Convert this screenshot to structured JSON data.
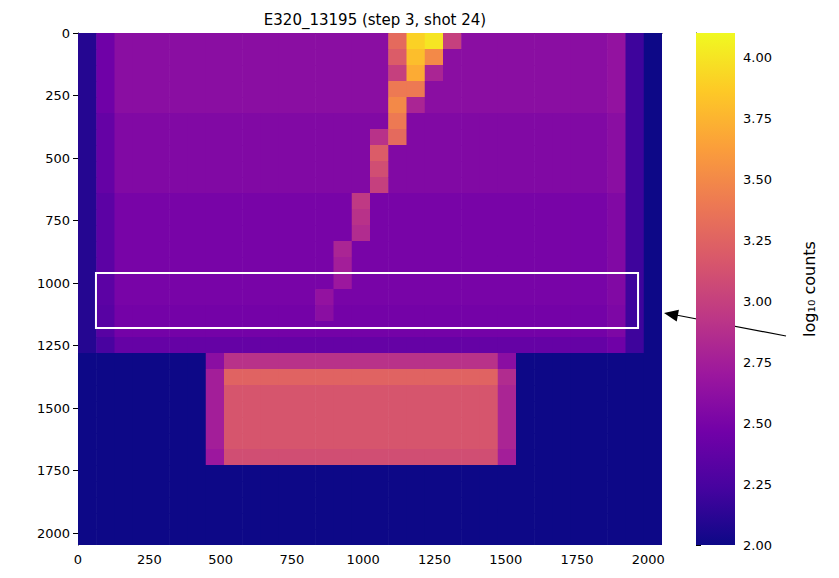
{
  "chart_data": {
    "type": "heatmap",
    "title": "E320_13195 (step 3, shot 24)",
    "xlim": [
      0,
      2048
    ],
    "ylim": [
      2048,
      0
    ],
    "xticks": [
      0,
      250,
      500,
      750,
      1000,
      1250,
      1500,
      1750,
      2000
    ],
    "yticks": [
      0,
      250,
      500,
      750,
      1000,
      1250,
      1500,
      1750,
      2000
    ],
    "x_bins": [
      0,
      64,
      128,
      192,
      256,
      320,
      384,
      448,
      512,
      576,
      640,
      704,
      768,
      832,
      896,
      960,
      1024,
      1088,
      1152,
      1216,
      1280,
      1344,
      1408,
      1472,
      1536,
      1600,
      1664,
      1728,
      1792,
      1856,
      1920,
      1984,
      2048
    ],
    "y_bins": [
      0,
      64,
      128,
      192,
      256,
      320,
      384,
      448,
      512,
      576,
      640,
      704,
      768,
      832,
      896,
      960,
      1024,
      1088,
      1152,
      1216,
      1280,
      1344,
      1408,
      1472,
      1536,
      1600,
      1664,
      1728,
      1792,
      1856,
      1920,
      1984,
      2048
    ],
    "cells": [
      [
        2.1,
        2.45,
        2.6,
        2.6,
        2.6,
        2.6,
        2.6,
        2.6,
        2.6,
        2.6,
        2.6,
        2.6,
        2.6,
        2.6,
        2.6,
        2.6,
        2.6,
        3.3,
        3.9,
        4.0,
        3.0,
        2.6,
        2.6,
        2.6,
        2.6,
        2.6,
        2.6,
        2.6,
        2.6,
        2.65,
        2.2,
        2.0
      ],
      [
        2.1,
        2.45,
        2.6,
        2.6,
        2.6,
        2.6,
        2.6,
        2.6,
        2.6,
        2.6,
        2.6,
        2.6,
        2.6,
        2.6,
        2.6,
        2.6,
        2.6,
        3.2,
        3.8,
        3.5,
        2.6,
        2.6,
        2.6,
        2.6,
        2.6,
        2.6,
        2.6,
        2.6,
        2.6,
        2.65,
        2.2,
        2.0
      ],
      [
        2.1,
        2.45,
        2.6,
        2.6,
        2.6,
        2.6,
        2.6,
        2.6,
        2.6,
        2.6,
        2.6,
        2.6,
        2.6,
        2.6,
        2.6,
        2.6,
        2.6,
        3.0,
        3.7,
        2.8,
        2.6,
        2.6,
        2.6,
        2.6,
        2.6,
        2.6,
        2.6,
        2.6,
        2.6,
        2.65,
        2.2,
        2.0
      ],
      [
        2.1,
        2.45,
        2.6,
        2.6,
        2.6,
        2.6,
        2.6,
        2.6,
        2.6,
        2.6,
        2.6,
        2.6,
        2.6,
        2.6,
        2.6,
        2.6,
        2.6,
        3.4,
        3.4,
        2.6,
        2.6,
        2.6,
        2.6,
        2.6,
        2.6,
        2.6,
        2.6,
        2.6,
        2.6,
        2.65,
        2.2,
        2.0
      ],
      [
        2.1,
        2.45,
        2.6,
        2.6,
        2.6,
        2.6,
        2.6,
        2.6,
        2.6,
        2.6,
        2.6,
        2.6,
        2.6,
        2.6,
        2.6,
        2.6,
        2.6,
        3.5,
        2.8,
        2.6,
        2.6,
        2.6,
        2.6,
        2.6,
        2.6,
        2.6,
        2.6,
        2.6,
        2.6,
        2.65,
        2.2,
        2.0
      ],
      [
        2.1,
        2.4,
        2.55,
        2.55,
        2.55,
        2.55,
        2.55,
        2.55,
        2.55,
        2.55,
        2.55,
        2.55,
        2.55,
        2.55,
        2.55,
        2.55,
        2.55,
        3.4,
        2.55,
        2.55,
        2.55,
        2.55,
        2.55,
        2.55,
        2.55,
        2.55,
        2.55,
        2.55,
        2.55,
        2.6,
        2.2,
        2.0
      ],
      [
        2.1,
        2.4,
        2.55,
        2.55,
        2.55,
        2.55,
        2.55,
        2.55,
        2.55,
        2.55,
        2.55,
        2.55,
        2.55,
        2.55,
        2.55,
        2.55,
        2.9,
        3.3,
        2.55,
        2.55,
        2.55,
        2.55,
        2.55,
        2.55,
        2.55,
        2.55,
        2.55,
        2.55,
        2.55,
        2.6,
        2.2,
        2.0
      ],
      [
        2.1,
        2.4,
        2.55,
        2.55,
        2.55,
        2.55,
        2.55,
        2.55,
        2.55,
        2.55,
        2.55,
        2.55,
        2.55,
        2.55,
        2.55,
        2.55,
        3.2,
        2.55,
        2.55,
        2.55,
        2.55,
        2.55,
        2.55,
        2.55,
        2.55,
        2.55,
        2.55,
        2.55,
        2.55,
        2.6,
        2.2,
        2.0
      ],
      [
        2.1,
        2.4,
        2.55,
        2.55,
        2.55,
        2.55,
        2.55,
        2.55,
        2.55,
        2.55,
        2.55,
        2.55,
        2.55,
        2.55,
        2.55,
        2.55,
        3.1,
        2.55,
        2.55,
        2.55,
        2.55,
        2.55,
        2.55,
        2.55,
        2.55,
        2.55,
        2.55,
        2.55,
        2.55,
        2.6,
        2.2,
        2.0
      ],
      [
        2.1,
        2.4,
        2.55,
        2.55,
        2.55,
        2.55,
        2.55,
        2.55,
        2.55,
        2.55,
        2.55,
        2.55,
        2.55,
        2.55,
        2.55,
        2.55,
        3.0,
        2.55,
        2.55,
        2.55,
        2.55,
        2.55,
        2.55,
        2.55,
        2.55,
        2.55,
        2.55,
        2.55,
        2.55,
        2.6,
        2.2,
        2.0
      ],
      [
        2.1,
        2.35,
        2.5,
        2.5,
        2.5,
        2.5,
        2.5,
        2.5,
        2.5,
        2.5,
        2.5,
        2.5,
        2.5,
        2.5,
        2.5,
        2.95,
        2.5,
        2.5,
        2.5,
        2.5,
        2.5,
        2.5,
        2.5,
        2.5,
        2.5,
        2.5,
        2.5,
        2.5,
        2.5,
        2.55,
        2.2,
        2.0
      ],
      [
        2.1,
        2.35,
        2.5,
        2.5,
        2.5,
        2.5,
        2.5,
        2.5,
        2.5,
        2.5,
        2.5,
        2.5,
        2.5,
        2.5,
        2.5,
        2.9,
        2.5,
        2.5,
        2.5,
        2.5,
        2.5,
        2.5,
        2.5,
        2.5,
        2.5,
        2.5,
        2.5,
        2.5,
        2.5,
        2.55,
        2.2,
        2.0
      ],
      [
        2.1,
        2.35,
        2.5,
        2.5,
        2.5,
        2.5,
        2.5,
        2.5,
        2.5,
        2.5,
        2.5,
        2.5,
        2.5,
        2.5,
        2.5,
        2.85,
        2.5,
        2.5,
        2.5,
        2.5,
        2.5,
        2.5,
        2.5,
        2.5,
        2.5,
        2.5,
        2.5,
        2.5,
        2.5,
        2.55,
        2.2,
        2.0
      ],
      [
        2.1,
        2.35,
        2.5,
        2.5,
        2.5,
        2.5,
        2.5,
        2.5,
        2.5,
        2.5,
        2.5,
        2.5,
        2.5,
        2.5,
        2.8,
        2.5,
        2.5,
        2.5,
        2.5,
        2.5,
        2.5,
        2.5,
        2.5,
        2.5,
        2.5,
        2.5,
        2.5,
        2.5,
        2.5,
        2.55,
        2.2,
        2.0
      ],
      [
        2.1,
        2.35,
        2.5,
        2.5,
        2.5,
        2.5,
        2.5,
        2.5,
        2.5,
        2.5,
        2.5,
        2.5,
        2.5,
        2.5,
        2.75,
        2.5,
        2.5,
        2.5,
        2.5,
        2.5,
        2.5,
        2.5,
        2.5,
        2.5,
        2.5,
        2.5,
        2.5,
        2.5,
        2.5,
        2.55,
        2.2,
        2.0
      ],
      [
        2.1,
        2.35,
        2.5,
        2.5,
        2.5,
        2.5,
        2.5,
        2.5,
        2.5,
        2.5,
        2.5,
        2.5,
        2.5,
        2.5,
        2.7,
        2.5,
        2.5,
        2.5,
        2.5,
        2.5,
        2.5,
        2.5,
        2.5,
        2.5,
        2.5,
        2.5,
        2.5,
        2.5,
        2.5,
        2.55,
        2.2,
        2.0
      ],
      [
        2.1,
        2.35,
        2.5,
        2.5,
        2.5,
        2.5,
        2.5,
        2.5,
        2.5,
        2.5,
        2.5,
        2.5,
        2.5,
        2.65,
        2.5,
        2.5,
        2.5,
        2.5,
        2.5,
        2.5,
        2.5,
        2.5,
        2.5,
        2.5,
        2.5,
        2.5,
        2.5,
        2.5,
        2.5,
        2.55,
        2.2,
        2.0
      ],
      [
        2.1,
        2.33,
        2.48,
        2.48,
        2.48,
        2.48,
        2.48,
        2.48,
        2.48,
        2.48,
        2.48,
        2.48,
        2.48,
        2.6,
        2.48,
        2.48,
        2.48,
        2.48,
        2.48,
        2.48,
        2.48,
        2.48,
        2.48,
        2.48,
        2.48,
        2.48,
        2.48,
        2.48,
        2.48,
        2.53,
        2.2,
        2.0
      ],
      [
        2.1,
        2.33,
        2.48,
        2.48,
        2.48,
        2.48,
        2.48,
        2.48,
        2.48,
        2.48,
        2.48,
        2.48,
        2.48,
        2.48,
        2.48,
        2.48,
        2.48,
        2.48,
        2.48,
        2.48,
        2.48,
        2.48,
        2.48,
        2.48,
        2.48,
        2.48,
        2.48,
        2.48,
        2.48,
        2.53,
        2.2,
        2.0
      ],
      [
        2.1,
        2.25,
        2.4,
        2.4,
        2.4,
        2.4,
        2.4,
        2.4,
        2.4,
        2.4,
        2.4,
        2.4,
        2.4,
        2.4,
        2.4,
        2.4,
        2.4,
        2.4,
        2.4,
        2.4,
        2.4,
        2.4,
        2.4,
        2.4,
        2.4,
        2.4,
        2.4,
        2.4,
        2.4,
        2.45,
        2.2,
        2.0
      ],
      [
        2.0,
        2.0,
        2.0,
        2.0,
        2.0,
        2.0,
        2.0,
        2.6,
        2.9,
        2.9,
        2.9,
        2.9,
        2.9,
        2.9,
        2.9,
        2.9,
        2.9,
        2.9,
        2.9,
        2.9,
        2.9,
        2.9,
        2.9,
        2.6,
        2.0,
        2.0,
        2.0,
        2.0,
        2.0,
        2.0,
        2.0,
        2.0
      ],
      [
        2.0,
        2.0,
        2.0,
        2.0,
        2.0,
        2.0,
        2.0,
        2.75,
        3.25,
        3.25,
        3.25,
        3.25,
        3.25,
        3.25,
        3.25,
        3.25,
        3.25,
        3.25,
        3.25,
        3.25,
        3.25,
        3.25,
        3.25,
        2.85,
        2.0,
        2.0,
        2.0,
        2.0,
        2.0,
        2.0,
        2.0,
        2.0
      ],
      [
        2.0,
        2.0,
        2.0,
        2.0,
        2.0,
        2.0,
        2.0,
        2.75,
        3.15,
        3.15,
        3.15,
        3.15,
        3.15,
        3.15,
        3.15,
        3.15,
        3.15,
        3.15,
        3.15,
        3.15,
        3.15,
        3.15,
        3.15,
        2.8,
        2.0,
        2.0,
        2.0,
        2.0,
        2.0,
        2.0,
        2.0,
        2.0
      ],
      [
        2.0,
        2.0,
        2.0,
        2.0,
        2.0,
        2.0,
        2.0,
        2.75,
        3.15,
        3.15,
        3.15,
        3.15,
        3.15,
        3.15,
        3.15,
        3.15,
        3.15,
        3.15,
        3.15,
        3.15,
        3.15,
        3.15,
        3.15,
        2.8,
        2.0,
        2.0,
        2.0,
        2.0,
        2.0,
        2.0,
        2.0,
        2.0
      ],
      [
        2.0,
        2.0,
        2.0,
        2.0,
        2.0,
        2.0,
        2.0,
        2.75,
        3.15,
        3.15,
        3.15,
        3.15,
        3.15,
        3.15,
        3.15,
        3.15,
        3.15,
        3.15,
        3.15,
        3.15,
        3.15,
        3.15,
        3.15,
        2.8,
        2.0,
        2.0,
        2.0,
        2.0,
        2.0,
        2.0,
        2.0,
        2.0
      ],
      [
        2.0,
        2.0,
        2.0,
        2.0,
        2.0,
        2.0,
        2.0,
        2.75,
        3.15,
        3.15,
        3.15,
        3.15,
        3.15,
        3.15,
        3.15,
        3.15,
        3.15,
        3.15,
        3.15,
        3.15,
        3.15,
        3.15,
        3.15,
        2.8,
        2.0,
        2.0,
        2.0,
        2.0,
        2.0,
        2.0,
        2.0,
        2.0
      ],
      [
        2.0,
        2.0,
        2.0,
        2.0,
        2.0,
        2.0,
        2.0,
        2.7,
        3.1,
        3.1,
        3.1,
        3.1,
        3.1,
        3.1,
        3.1,
        3.1,
        3.1,
        3.1,
        3.1,
        3.1,
        3.1,
        3.1,
        3.1,
        2.75,
        2.0,
        2.0,
        2.0,
        2.0,
        2.0,
        2.0,
        2.0,
        2.0
      ],
      [
        2.0,
        2.0,
        2.0,
        2.0,
        2.0,
        2.0,
        2.0,
        2.0,
        2.0,
        2.0,
        2.0,
        2.0,
        2.0,
        2.0,
        2.0,
        2.0,
        2.0,
        2.0,
        2.0,
        2.0,
        2.0,
        2.0,
        2.0,
        2.0,
        2.0,
        2.0,
        2.0,
        2.0,
        2.0,
        2.0,
        2.0,
        2.0
      ],
      [
        2.0,
        2.0,
        2.0,
        2.0,
        2.0,
        2.0,
        2.0,
        2.0,
        2.0,
        2.0,
        2.0,
        2.0,
        2.0,
        2.0,
        2.0,
        2.0,
        2.0,
        2.0,
        2.0,
        2.0,
        2.0,
        2.0,
        2.0,
        2.0,
        2.0,
        2.0,
        2.0,
        2.0,
        2.0,
        2.0,
        2.0,
        2.0
      ],
      [
        2.0,
        2.0,
        2.0,
        2.0,
        2.0,
        2.0,
        2.0,
        2.0,
        2.0,
        2.0,
        2.0,
        2.0,
        2.0,
        2.0,
        2.0,
        2.0,
        2.0,
        2.0,
        2.0,
        2.0,
        2.0,
        2.0,
        2.0,
        2.0,
        2.0,
        2.0,
        2.0,
        2.0,
        2.0,
        2.0,
        2.0,
        2.0
      ],
      [
        2.0,
        2.0,
        2.0,
        2.0,
        2.0,
        2.0,
        2.0,
        2.0,
        2.0,
        2.0,
        2.0,
        2.0,
        2.0,
        2.0,
        2.0,
        2.0,
        2.0,
        2.0,
        2.0,
        2.0,
        2.0,
        2.0,
        2.0,
        2.0,
        2.0,
        2.0,
        2.0,
        2.0,
        2.0,
        2.0,
        2.0,
        2.0
      ],
      [
        2.0,
        2.0,
        2.0,
        2.0,
        2.0,
        2.0,
        2.0,
        2.0,
        2.0,
        2.0,
        2.0,
        2.0,
        2.0,
        2.0,
        2.0,
        2.0,
        2.0,
        2.0,
        2.0,
        2.0,
        2.0,
        2.0,
        2.0,
        2.0,
        2.0,
        2.0,
        2.0,
        2.0,
        2.0,
        2.0,
        2.0,
        2.0
      ]
    ],
    "colorbar": {
      "label": "log₁₀ counts",
      "range": [
        2.0,
        4.1
      ],
      "ticks": [
        {
          "value": 2.0,
          "label": "2.00"
        },
        {
          "value": 2.25,
          "label": "2.25"
        },
        {
          "value": 2.5,
          "label": "2.50"
        },
        {
          "value": 2.75,
          "label": "2.75"
        },
        {
          "value": 3.0,
          "label": "3.00"
        },
        {
          "value": 3.25,
          "label": "3.25"
        },
        {
          "value": 3.5,
          "label": "3.50"
        },
        {
          "value": 3.75,
          "label": "3.75"
        },
        {
          "value": 4.0,
          "label": "4.00"
        }
      ]
    },
    "annotations": [
      {
        "type": "box",
        "x": [
          63,
          1964
        ],
        "y": [
          960,
          1180
        ]
      }
    ]
  }
}
